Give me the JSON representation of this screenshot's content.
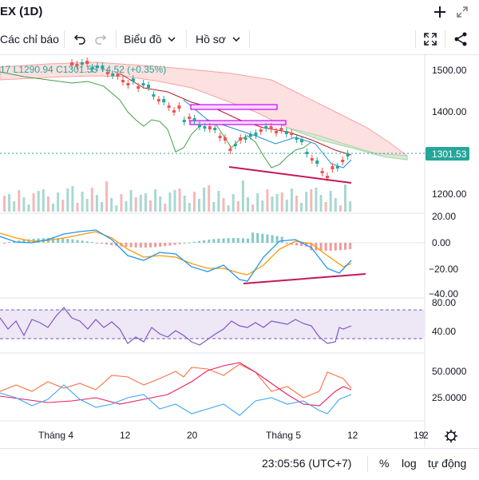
{
  "title": "EX (1D)",
  "window": {
    "add_icon": "plus-icon",
    "expand_icon": "expand-icon"
  },
  "toolbar": {
    "indicators_label": "Các chỉ báo",
    "chart_type_label": "Biểu đồ",
    "profile_label": "Hồ sơ"
  },
  "legend": {
    "low": "17  L1290.94",
    "close": "C1301.53",
    "change": "+4.52 (+0.35%)"
  },
  "price_axis": {
    "ticks": [
      "1500.00",
      "1400.00",
      "1200.00"
    ],
    "current": "1301.53"
  },
  "macd_axis": {
    "ticks": [
      "20.00",
      "0.00",
      "−20.00",
      "−40.00"
    ]
  },
  "rsi_axis": {
    "ticks": [
      "80.00",
      "40.00"
    ]
  },
  "osc_axis": {
    "ticks": [
      "50.0000",
      "25.0000"
    ]
  },
  "time_axis": {
    "ticks": [
      "Tháng 4",
      "12",
      "20",
      "Tháng 5",
      "12",
      "19",
      "2"
    ]
  },
  "status": {
    "time": "23:05:56 (UTC+7)",
    "percent": "%",
    "log": "log",
    "auto": "tự động"
  },
  "colors": {
    "up": "#26a69a",
    "down": "#ef5350",
    "cloud": "#f8c8c8",
    "macd": "#2196f3",
    "signal": "#ff9800",
    "rsi": "#7e57c2",
    "rsi_band": "#ede7f6",
    "trendline": "#c2185b",
    "box": "#d500f9",
    "conversion": "#43a047",
    "base": "#b71c1c",
    "osc_red": "#e91e63"
  }
}
